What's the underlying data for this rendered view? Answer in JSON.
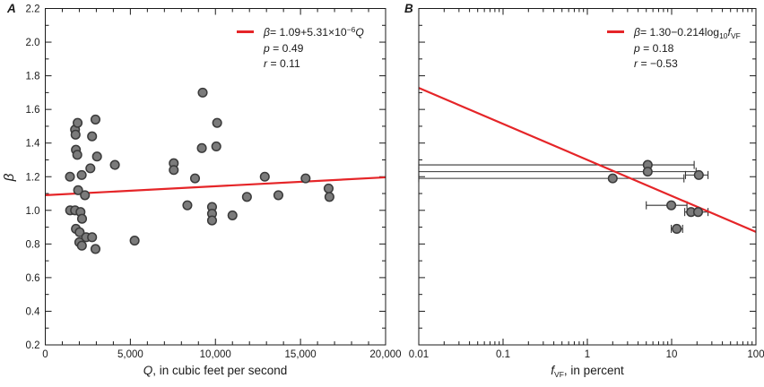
{
  "colors": {
    "accent_red": "#e52528",
    "marker_fill": "#7b7b7b",
    "marker_stroke": "#3a3a3a",
    "errorbar": "#333333",
    "axis": "#1a1a1a",
    "text": "#1a1a1a",
    "background": "#ffffff"
  },
  "ylabel": "β",
  "chart_data": [
    {
      "type": "scatter",
      "panel_label": "A",
      "x_axis": {
        "scale": "linear",
        "lim": [
          0,
          20000
        ],
        "ticks": [
          0,
          5000,
          10000,
          15000,
          20000
        ],
        "tick_labels": [
          "0",
          "5,000",
          "10,000",
          "15,000",
          "20,000"
        ],
        "minor_step": 1000,
        "label_italic": "Q",
        "label_rest": ", in cubic feet per second"
      },
      "y_axis": {
        "scale": "linear",
        "lim": [
          0.2,
          2.2
        ],
        "ticks": [
          0.2,
          0.4,
          0.6,
          0.8,
          1.0,
          1.2,
          1.4,
          1.6,
          1.8,
          2.0,
          2.2
        ],
        "tick_labels": [
          "0.2",
          "0.4",
          "0.6",
          "0.8",
          "1.0",
          "1.2",
          "1.4",
          "1.6",
          "1.8",
          "2.0",
          "2.2"
        ],
        "minor_step": 0.1,
        "label": "β",
        "show_tick_labels": true
      },
      "points": [
        [
          1750,
          1.48
        ],
        [
          1780,
          1.45
        ],
        [
          1900,
          1.52
        ],
        [
          2950,
          1.54
        ],
        [
          2750,
          1.44
        ],
        [
          1800,
          1.36
        ],
        [
          1880,
          1.33
        ],
        [
          3040,
          1.32
        ],
        [
          1450,
          1.2
        ],
        [
          2140,
          1.21
        ],
        [
          2650,
          1.25
        ],
        [
          4090,
          1.27
        ],
        [
          1930,
          1.12
        ],
        [
          2330,
          1.09
        ],
        [
          1460,
          1.0
        ],
        [
          1750,
          1.0
        ],
        [
          2070,
          0.99
        ],
        [
          2160,
          0.95
        ],
        [
          1800,
          0.89
        ],
        [
          2020,
          0.87
        ],
        [
          2400,
          0.84
        ],
        [
          2750,
          0.84
        ],
        [
          2000,
          0.81
        ],
        [
          2150,
          0.79
        ],
        [
          2950,
          0.77
        ],
        [
          5250,
          0.82
        ],
        [
          9250,
          1.7
        ],
        [
          10100,
          1.52
        ],
        [
          9200,
          1.37
        ],
        [
          10050,
          1.38
        ],
        [
          7550,
          1.28
        ],
        [
          7550,
          1.24
        ],
        [
          8800,
          1.19
        ],
        [
          12900,
          1.2
        ],
        [
          15300,
          1.19
        ],
        [
          11850,
          1.08
        ],
        [
          13700,
          1.09
        ],
        [
          16650,
          1.13
        ],
        [
          16700,
          1.08
        ],
        [
          8350,
          1.03
        ],
        [
          9800,
          1.02
        ],
        [
          9800,
          0.98
        ],
        [
          9800,
          0.94
        ],
        [
          11000,
          0.97
        ]
      ],
      "fit_line": {
        "type": "linear",
        "intercept": 1.09,
        "slope": 5.31e-06
      },
      "legend": {
        "eq_sym": "β",
        "eq_body": "= 1.09+5.31×10",
        "eq_sup": "−6",
        "eq_end": "Q",
        "p_sym": "p",
        "p_val": " = 0.49",
        "r_sym": "r",
        "r_val": " = 0.11"
      }
    },
    {
      "type": "scatter",
      "panel_label": "B",
      "x_axis": {
        "scale": "log",
        "lim": [
          0.01,
          100
        ],
        "ticks": [
          0.01,
          0.1,
          1,
          10,
          100
        ],
        "tick_labels": [
          "0.01",
          "0.1",
          "1",
          "10",
          "100"
        ],
        "label_italic": "f",
        "label_sub": "VF",
        "label_rest": ", in percent"
      },
      "y_axis": {
        "scale": "linear",
        "lim": [
          0.2,
          2.2
        ],
        "ticks": [
          0.2,
          0.4,
          0.6,
          0.8,
          1.0,
          1.2,
          1.4,
          1.6,
          1.8,
          2.0,
          2.2
        ],
        "tick_labels": [],
        "minor_step": 0.1,
        "label": "β",
        "show_tick_labels": false
      },
      "points": [
        {
          "x": 5.2,
          "y": 1.27,
          "xlo": 0.01,
          "xhi": 18.5
        },
        {
          "x": 5.2,
          "y": 1.23,
          "xlo": 0.01,
          "xhi": 19.5
        },
        {
          "x": 2.0,
          "y": 1.19,
          "xlo": 0.01,
          "xhi": 14.0
        },
        {
          "x": 21.0,
          "y": 1.21,
          "xlo": 14.6,
          "xhi": 27.0
        },
        {
          "x": 9.9,
          "y": 1.03,
          "xlo": 5.0,
          "xhi": 15.2
        },
        {
          "x": 17.0,
          "y": 0.99,
          "xlo": 14.3,
          "xhi": 21.0
        },
        {
          "x": 20.6,
          "y": 0.99,
          "xlo": 16.5,
          "xhi": 27.0
        },
        {
          "x": 11.5,
          "y": 0.89,
          "xlo": 9.9,
          "xhi": 13.5
        }
      ],
      "fit_line": {
        "type": "log10",
        "intercept": 1.3,
        "slope": -0.214
      },
      "legend": {
        "eq_sym": "β",
        "eq_body": "= 1.30−0.214log",
        "eq_sub": "10",
        "eq_f": "f",
        "eq_fsub": "VF",
        "p_sym": "p",
        "p_val": " = 0.18",
        "r_sym": "r",
        "r_val": " = −0.53"
      }
    }
  ]
}
